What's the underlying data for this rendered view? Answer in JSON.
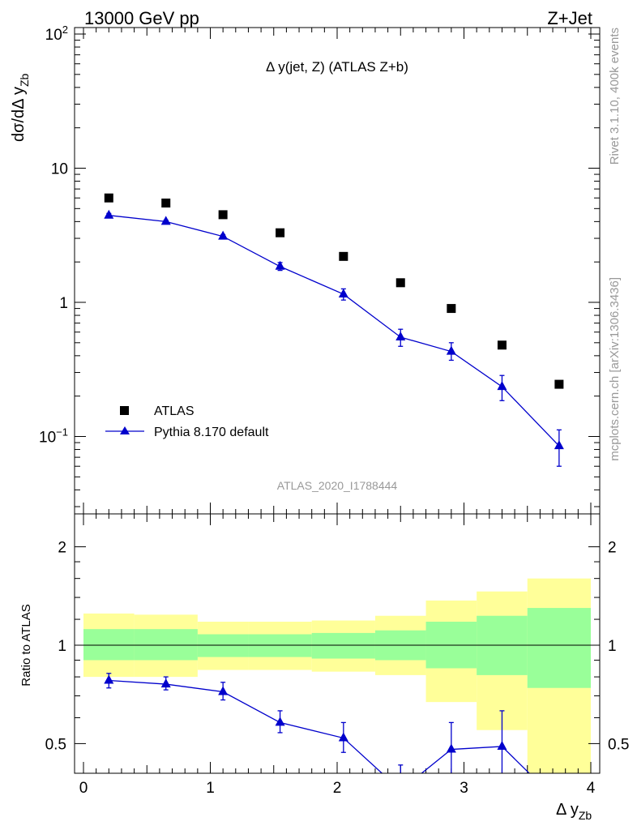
{
  "header": {
    "energy_label": "13000 GeV pp",
    "process_label": "Z+Jet",
    "plot_title": "Δ y(jet, Z) (ATLAS Z+b)",
    "analysis_id": "ATLAS_2020_I1788444",
    "rivet_info": "Rivet 3.1.10,  400k events",
    "source_info": "mcplots.cern.ch [arXiv:1306.3436]"
  },
  "axes": {
    "main_ylabel": "dσ/dΔ y_Zb",
    "ratio_ylabel": "Ratio to ATLAS",
    "xlabel": "Δ y_Zb",
    "main_yticks": [
      "10^-1",
      "1",
      "10",
      "10^2"
    ],
    "ratio_yticks": [
      "0.5",
      "1",
      "2"
    ],
    "xticks": [
      "0",
      "1",
      "2",
      "3",
      "4"
    ]
  },
  "legend": {
    "position": "lower-left",
    "entries": [
      "ATLAS",
      "Pythia 8.170 default"
    ]
  },
  "colors": {
    "data": "#000000",
    "mc": "#0000cc",
    "band_inner": "#99ff99",
    "band_outer": "#ffff99"
  },
  "chart_data": [
    {
      "type": "scatter",
      "panel": "main",
      "title": "Δ y(jet, Z) (ATLAS Z+b)",
      "xlabel": "Δ y_Zb",
      "ylabel": "dσ/dΔ y_Zb",
      "yscale": "log",
      "xlim": [
        0,
        4
      ],
      "ylim": [
        0.03,
        130
      ],
      "series": [
        {
          "name": "ATLAS",
          "marker": "square",
          "x": [
            0.2,
            0.65,
            1.1,
            1.55,
            2.05,
            2.5,
            2.9,
            3.3,
            3.75
          ],
          "y": [
            6.0,
            5.5,
            4.5,
            3.3,
            2.2,
            1.4,
            0.9,
            0.48,
            0.245
          ]
        },
        {
          "name": "Pythia 8.170 default",
          "marker": "triangle",
          "x": [
            0.2,
            0.65,
            1.1,
            1.55,
            2.05,
            2.5,
            2.9,
            3.3,
            3.75
          ],
          "y": [
            4.45,
            4.0,
            3.1,
            1.85,
            1.15,
            0.55,
            0.43,
            0.235,
            0.085
          ],
          "yerr_low": [
            4.3,
            3.9,
            3.0,
            1.73,
            1.04,
            0.47,
            0.37,
            0.185,
            0.06
          ],
          "yerr_high": [
            4.6,
            4.1,
            3.2,
            1.98,
            1.26,
            0.63,
            0.5,
            0.285,
            0.112
          ]
        }
      ]
    },
    {
      "type": "line",
      "panel": "ratio",
      "ylabel": "Ratio to ATLAS",
      "xlabel": "Δ y_Zb",
      "ylim": [
        0.35,
        2.3
      ],
      "xlim": [
        0,
        4
      ],
      "reference": 1,
      "bands": {
        "edges": [
          0,
          0.4,
          0.9,
          1.3,
          1.8,
          2.3,
          2.7,
          3.1,
          3.5,
          4.0
        ],
        "inner_low": [
          0.9,
          0.9,
          0.92,
          0.92,
          0.91,
          0.9,
          0.85,
          0.81,
          0.74
        ],
        "inner_high": [
          1.12,
          1.12,
          1.08,
          1.08,
          1.09,
          1.11,
          1.18,
          1.23,
          1.3
        ],
        "outer_low": [
          0.8,
          0.8,
          0.84,
          0.84,
          0.83,
          0.81,
          0.67,
          0.55,
          0.3
        ],
        "outer_high": [
          1.25,
          1.24,
          1.18,
          1.18,
          1.19,
          1.23,
          1.37,
          1.46,
          1.6
        ]
      },
      "series": [
        {
          "name": "Pythia 8.170 default",
          "x": [
            0.2,
            0.65,
            1.1,
            1.55,
            2.05,
            2.5,
            2.9,
            3.3,
            3.75
          ],
          "y": [
            0.78,
            0.76,
            0.72,
            0.58,
            0.52,
            0.36,
            0.48,
            0.49,
            0.33
          ],
          "yerr_low": [
            0.74,
            0.73,
            0.68,
            0.54,
            0.47,
            0.3,
            0.38,
            0.36,
            0.25
          ],
          "yerr_high": [
            0.82,
            0.8,
            0.77,
            0.63,
            0.58,
            0.43,
            0.58,
            0.63,
            0.4
          ]
        }
      ]
    }
  ]
}
